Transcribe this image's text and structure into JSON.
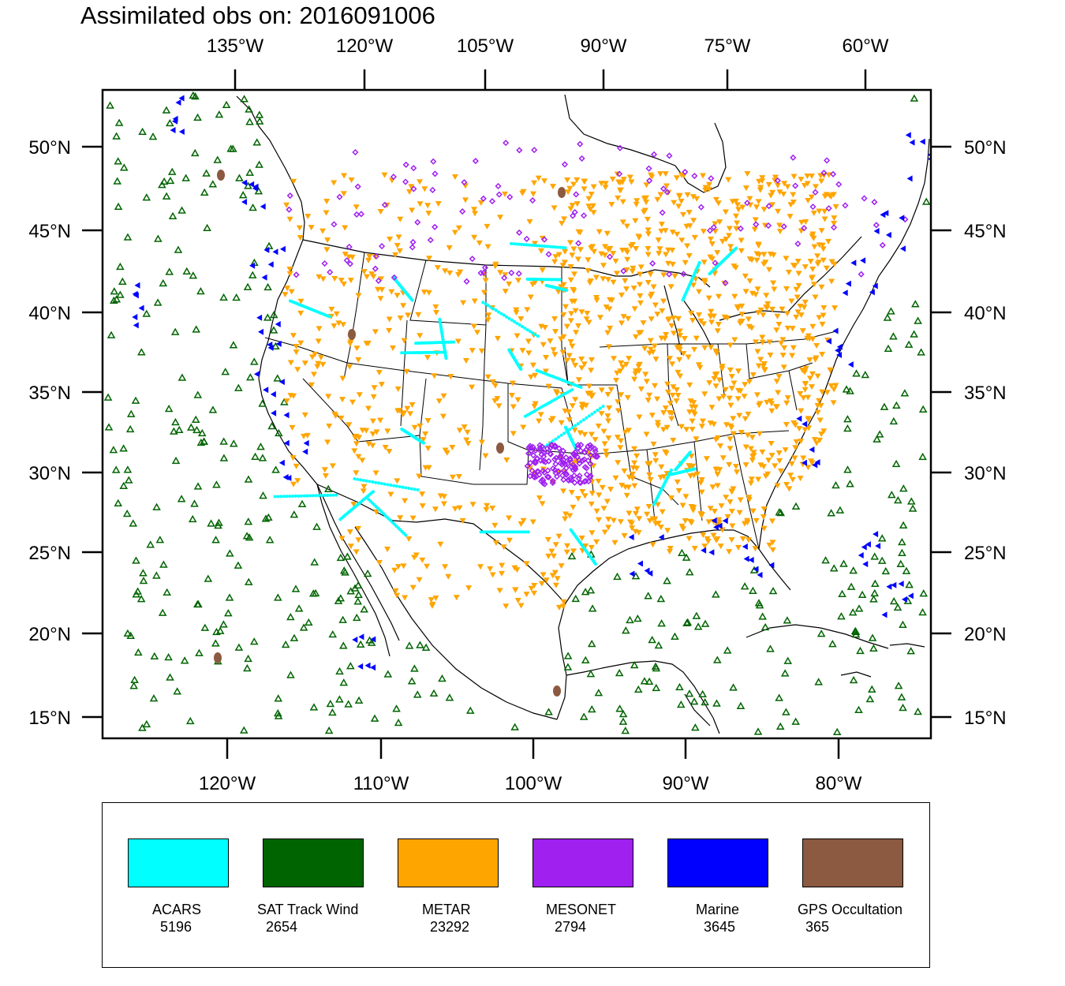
{
  "title": "Assimilated obs on: 2016091006",
  "colors": {
    "acars": "#00FFFF",
    "sat": "#006400",
    "metar": "#FFA500",
    "mesonet": "#A020F0",
    "marine": "#0000FF",
    "gps": "#8B5A40",
    "land": "#FFFFFF",
    "frame": "#000000"
  },
  "axes": {
    "top": [
      "135°W",
      "120°W",
      "105°W",
      "90°W",
      "75°W",
      "60°W"
    ],
    "bottom": [
      "120°W",
      "110°W",
      "100°W",
      "90°W",
      "80°W"
    ],
    "left": [
      "50°N",
      "45°N",
      "40°N",
      "35°N",
      "30°N",
      "25°N",
      "20°N",
      "15°N"
    ],
    "right": [
      "50°N",
      "45°N",
      "40°N",
      "35°N",
      "30°N",
      "25°N",
      "20°N",
      "15°N"
    ]
  },
  "legend": [
    {
      "name": "ACARS",
      "count": "5196",
      "color": "#00FFFF",
      "marker": "dot"
    },
    {
      "name": "SAT Track Wind",
      "count": "2654",
      "color": "#006400",
      "marker": "triangle-up"
    },
    {
      "name": "METAR",
      "count": "23292",
      "color": "#FFA500",
      "marker": "triangle-down"
    },
    {
      "name": "MESONET",
      "count": "2794",
      "color": "#A020F0",
      "marker": "diamond"
    },
    {
      "name": "Marine",
      "count": "3645",
      "color": "#0000FF",
      "marker": "triangle-left"
    },
    {
      "name": "GPS Occultation",
      "count": "365",
      "color": "#8B5A40",
      "marker": "blob"
    }
  ]
}
